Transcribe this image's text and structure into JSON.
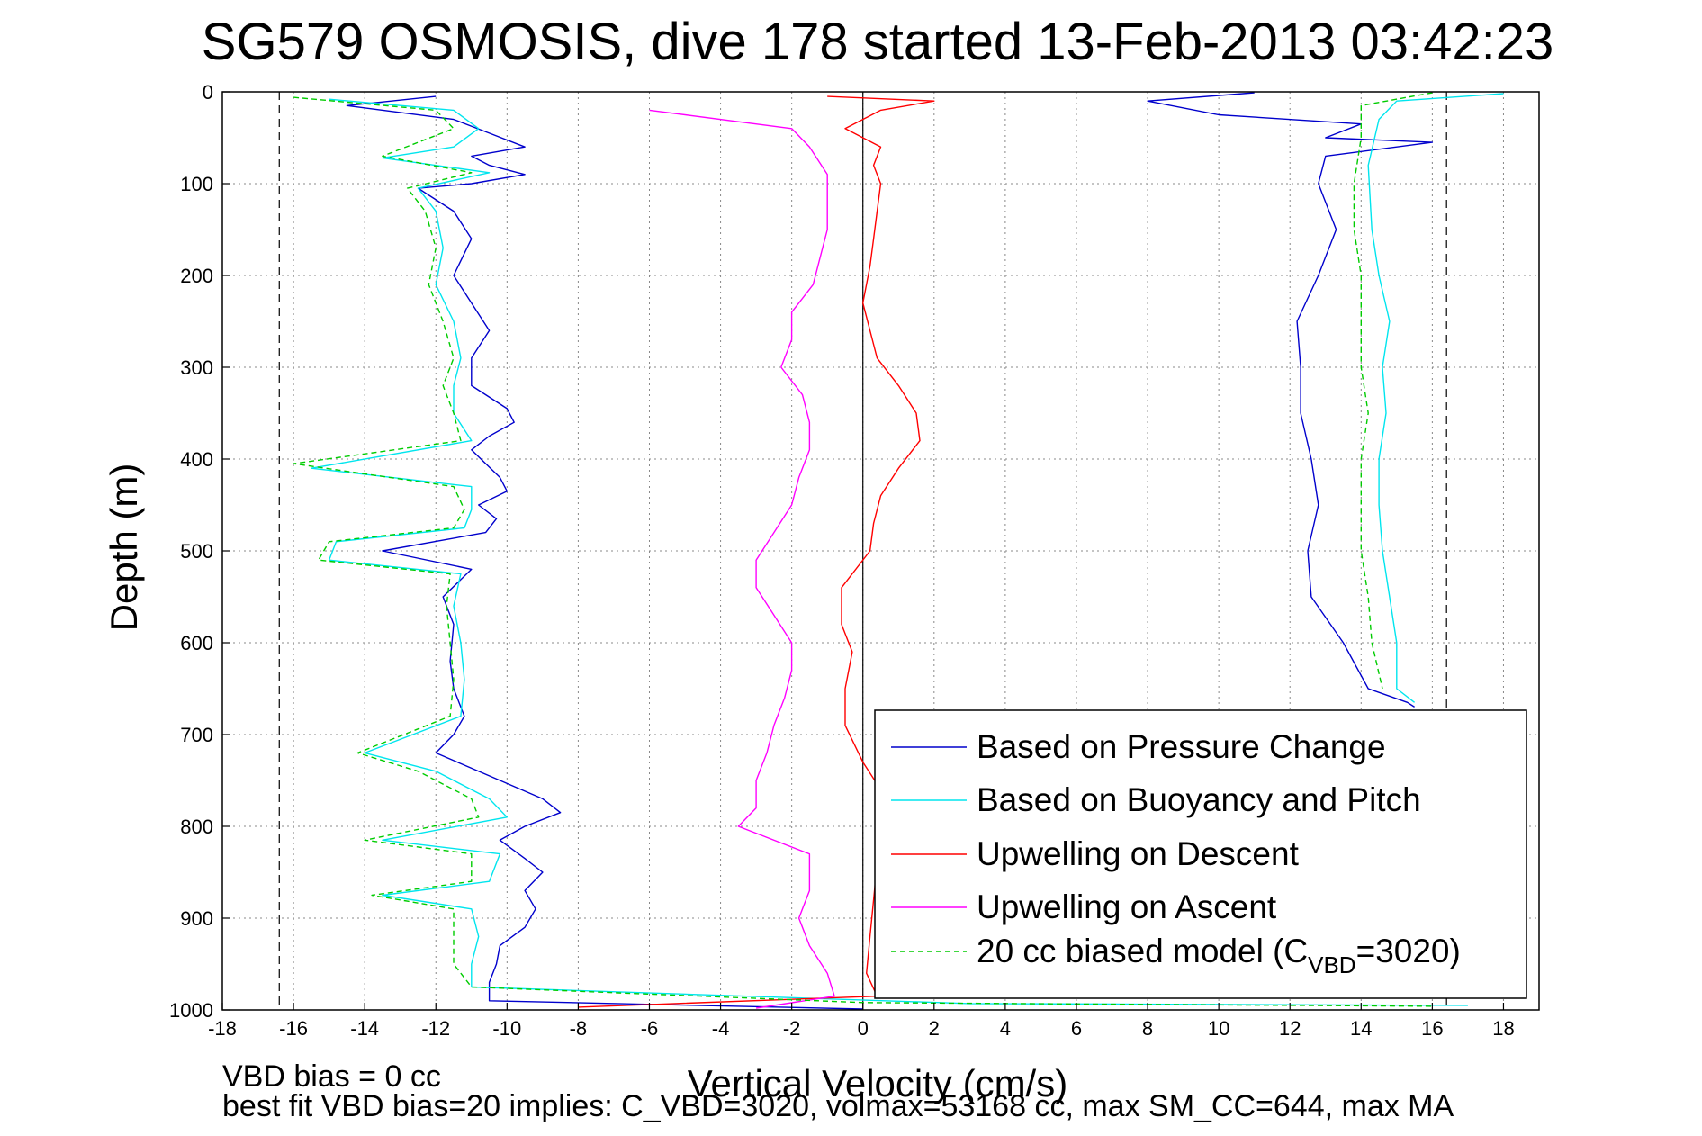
{
  "chart_data": {
    "type": "line",
    "title": "SG579 OSMOSIS, dive 178 started 13-Feb-2013 03:42:23",
    "xlabel": "Vertical Velocity (cm/s)",
    "ylabel": "Depth (m)",
    "xlim": [
      -18,
      19
    ],
    "ylim": [
      0,
      1000
    ],
    "y_reversed": true,
    "grid": true,
    "legend_position": "bottom-right",
    "x_ticks": [
      "-18",
      "-16",
      "-14",
      "-12",
      "-10",
      "-8",
      "-6",
      "-4",
      "-2",
      "0",
      "2",
      "4",
      "6",
      "8",
      "10",
      "12",
      "14",
      "16",
      "18"
    ],
    "y_ticks": [
      "0",
      "100",
      "200",
      "300",
      "400",
      "500",
      "600",
      "700",
      "800",
      "900",
      "1000"
    ],
    "reference_lines": [
      -16.4,
      0,
      16.4
    ],
    "footnotes": [
      "VBD bias = 0 cc",
      "best fit VBD bias=20 implies: C_VBD=3020, volmax=53168 cc, max SM_CC=644, max MA"
    ],
    "legend_sub_text": "VBD",
    "series": [
      {
        "name": "Based on Pressure Change",
        "color": "#0000cc",
        "dash": "",
        "points": [
          [
            -12,
            5
          ],
          [
            -14.5,
            15
          ],
          [
            -11.5,
            30
          ],
          [
            -10.5,
            45
          ],
          [
            -9.5,
            60
          ],
          [
            -11,
            70
          ],
          [
            -10.5,
            80
          ],
          [
            -9.5,
            90
          ],
          [
            -11,
            100
          ],
          [
            -12.5,
            105
          ],
          [
            -11.5,
            130
          ],
          [
            -11,
            160
          ],
          [
            -11.5,
            200
          ],
          [
            -11,
            230
          ],
          [
            -10.5,
            260
          ],
          [
            -11,
            290
          ],
          [
            -11,
            320
          ],
          [
            -10,
            345
          ],
          [
            -9.8,
            360
          ],
          [
            -10.5,
            375
          ],
          [
            -11,
            390
          ],
          [
            -10.2,
            420
          ],
          [
            -10,
            435
          ],
          [
            -10.8,
            450
          ],
          [
            -10.3,
            465
          ],
          [
            -10.6,
            480
          ],
          [
            -13.5,
            500
          ],
          [
            -11,
            520
          ],
          [
            -11.8,
            550
          ],
          [
            -11.5,
            580
          ],
          [
            -11.6,
            620
          ],
          [
            -11.5,
            650
          ],
          [
            -11.2,
            680
          ],
          [
            -11.5,
            700
          ],
          [
            -12,
            720
          ],
          [
            -10.5,
            745
          ],
          [
            -9,
            770
          ],
          [
            -8.5,
            785
          ],
          [
            -9.5,
            800
          ],
          [
            -10.2,
            815
          ],
          [
            -9.5,
            835
          ],
          [
            -9,
            850
          ],
          [
            -9.5,
            870
          ],
          [
            -9.2,
            890
          ],
          [
            -9.5,
            910
          ],
          [
            -10.2,
            930
          ],
          [
            -10.3,
            950
          ],
          [
            -10.5,
            970
          ],
          [
            -10.5,
            990
          ],
          [
            0,
            999
          ],
          [
            11,
            1
          ],
          [
            8,
            10
          ],
          [
            10,
            25
          ],
          [
            14,
            35
          ],
          [
            13,
            50
          ],
          [
            16,
            55
          ],
          [
            13,
            70
          ],
          [
            12.8,
            100
          ],
          [
            13.3,
            150
          ],
          [
            12.8,
            200
          ],
          [
            12.2,
            250
          ],
          [
            12.3,
            300
          ],
          [
            12.3,
            350
          ],
          [
            12.6,
            400
          ],
          [
            12.8,
            450
          ],
          [
            12.5,
            500
          ],
          [
            12.6,
            550
          ],
          [
            13.5,
            600
          ],
          [
            14.2,
            650
          ],
          [
            15.3,
            665
          ],
          [
            15.5,
            670
          ]
        ]
      },
      {
        "name": "Based on Buoyancy and Pitch",
        "color": "#00e5ee",
        "dash": "",
        "points": [
          [
            -15,
            8
          ],
          [
            -11.5,
            20
          ],
          [
            -10.8,
            40
          ],
          [
            -11.5,
            60
          ],
          [
            -13.5,
            72
          ],
          [
            -10.5,
            88
          ],
          [
            -12.5,
            105
          ],
          [
            -12,
            130
          ],
          [
            -11.8,
            170
          ],
          [
            -12,
            210
          ],
          [
            -11.5,
            250
          ],
          [
            -11.3,
            290
          ],
          [
            -11.5,
            320
          ],
          [
            -11.5,
            350
          ],
          [
            -11,
            380
          ],
          [
            -15.5,
            410
          ],
          [
            -11,
            430
          ],
          [
            -11,
            455
          ],
          [
            -11.2,
            475
          ],
          [
            -14.8,
            490
          ],
          [
            -15,
            510
          ],
          [
            -11.3,
            525
          ],
          [
            -11.5,
            560
          ],
          [
            -11.3,
            600
          ],
          [
            -11.2,
            640
          ],
          [
            -11.3,
            680
          ],
          [
            -14,
            720
          ],
          [
            -12,
            740
          ],
          [
            -10.5,
            770
          ],
          [
            -10,
            790
          ],
          [
            -13.5,
            815
          ],
          [
            -10.2,
            830
          ],
          [
            -10.5,
            860
          ],
          [
            -13.5,
            875
          ],
          [
            -11,
            890
          ],
          [
            -10.8,
            920
          ],
          [
            -11,
            950
          ],
          [
            -11,
            975
          ],
          [
            3,
            993
          ],
          [
            17,
            995
          ],
          [
            18,
            2
          ],
          [
            15,
            10
          ],
          [
            14.5,
            30
          ],
          [
            14.2,
            80
          ],
          [
            14.3,
            150
          ],
          [
            14.5,
            200
          ],
          [
            14.8,
            250
          ],
          [
            14.6,
            300
          ],
          [
            14.7,
            350
          ],
          [
            14.5,
            400
          ],
          [
            14.5,
            450
          ],
          [
            14.6,
            500
          ],
          [
            14.8,
            550
          ],
          [
            15,
            600
          ],
          [
            15,
            650
          ],
          [
            15.5,
            665
          ]
        ]
      },
      {
        "name": "Upwelling on Descent",
        "color": "#ff0000",
        "dash": "",
        "points": [
          [
            -1,
            5
          ],
          [
            2,
            10
          ],
          [
            0.5,
            20
          ],
          [
            -0.5,
            40
          ],
          [
            0.5,
            60
          ],
          [
            0.3,
            80
          ],
          [
            0.5,
            100
          ],
          [
            0.4,
            130
          ],
          [
            0.3,
            160
          ],
          [
            0.2,
            190
          ],
          [
            0,
            230
          ],
          [
            0.2,
            260
          ],
          [
            0.4,
            290
          ],
          [
            1,
            320
          ],
          [
            1.5,
            350
          ],
          [
            1.6,
            380
          ],
          [
            1,
            410
          ],
          [
            0.5,
            440
          ],
          [
            0.3,
            470
          ],
          [
            0.2,
            500
          ],
          [
            -0.6,
            540
          ],
          [
            -0.6,
            580
          ],
          [
            -0.3,
            610
          ],
          [
            -0.5,
            650
          ],
          [
            -0.5,
            690
          ],
          [
            0,
            730
          ],
          [
            0.5,
            760
          ],
          [
            0.5,
            800
          ],
          [
            0.4,
            840
          ],
          [
            0.3,
            880
          ],
          [
            0.2,
            920
          ],
          [
            0.1,
            960
          ],
          [
            0.4,
            985
          ],
          [
            -8,
            997
          ]
        ]
      },
      {
        "name": "Upwelling on Ascent",
        "color": "#ff00ff",
        "dash": "",
        "points": [
          [
            -6,
            20
          ],
          [
            -2,
            40
          ],
          [
            -1.5,
            60
          ],
          [
            -1,
            90
          ],
          [
            -1,
            120
          ],
          [
            -1,
            150
          ],
          [
            -1.2,
            180
          ],
          [
            -1.4,
            210
          ],
          [
            -2,
            240
          ],
          [
            -2,
            270
          ],
          [
            -2.3,
            300
          ],
          [
            -1.7,
            330
          ],
          [
            -1.5,
            360
          ],
          [
            -1.5,
            390
          ],
          [
            -1.8,
            420
          ],
          [
            -2,
            450
          ],
          [
            -2.5,
            480
          ],
          [
            -3,
            510
          ],
          [
            -3,
            540
          ],
          [
            -2.5,
            570
          ],
          [
            -2,
            600
          ],
          [
            -2,
            630
          ],
          [
            -2.2,
            660
          ],
          [
            -2.5,
            690
          ],
          [
            -2.7,
            720
          ],
          [
            -3,
            750
          ],
          [
            -3,
            780
          ],
          [
            -3.5,
            800
          ],
          [
            -1.5,
            830
          ],
          [
            -1.5,
            870
          ],
          [
            -1.8,
            900
          ],
          [
            -1.5,
            930
          ],
          [
            -1,
            960
          ],
          [
            -0.8,
            985
          ],
          [
            -3,
            998
          ]
        ]
      },
      {
        "name": "20 cc biased model (C  =3020)",
        "color": "#00cc00",
        "dash": "6 4",
        "points": [
          [
            -16,
            6
          ],
          [
            -12,
            20
          ],
          [
            -11.5,
            40
          ],
          [
            -13.5,
            70
          ],
          [
            -11,
            88
          ],
          [
            -12.8,
            105
          ],
          [
            -12.3,
            130
          ],
          [
            -12,
            170
          ],
          [
            -12.2,
            210
          ],
          [
            -11.8,
            250
          ],
          [
            -11.5,
            290
          ],
          [
            -11.8,
            320
          ],
          [
            -11.5,
            350
          ],
          [
            -11.3,
            380
          ],
          [
            -16,
            405
          ],
          [
            -11.5,
            430
          ],
          [
            -11.2,
            455
          ],
          [
            -11.5,
            475
          ],
          [
            -15,
            490
          ],
          [
            -15.3,
            510
          ],
          [
            -11.6,
            525
          ],
          [
            -11.7,
            560
          ],
          [
            -11.6,
            600
          ],
          [
            -11.5,
            640
          ],
          [
            -11.6,
            680
          ],
          [
            -14.2,
            720
          ],
          [
            -12.5,
            740
          ],
          [
            -11,
            770
          ],
          [
            -10.8,
            790
          ],
          [
            -14,
            815
          ],
          [
            -11,
            830
          ],
          [
            -11,
            860
          ],
          [
            -13.8,
            875
          ],
          [
            -11.5,
            890
          ],
          [
            -11.5,
            920
          ],
          [
            -11.5,
            950
          ],
          [
            -11,
            975
          ],
          [
            0,
            992
          ],
          [
            16,
            996
          ],
          [
            16,
            1
          ],
          [
            14,
            15
          ],
          [
            14,
            50
          ],
          [
            13.8,
            100
          ],
          [
            13.8,
            150
          ],
          [
            14,
            200
          ],
          [
            14,
            250
          ],
          [
            14,
            300
          ],
          [
            14.2,
            350
          ],
          [
            14,
            400
          ],
          [
            14,
            450
          ],
          [
            14,
            500
          ],
          [
            14.2,
            550
          ],
          [
            14.3,
            600
          ],
          [
            14.6,
            650
          ]
        ]
      }
    ]
  }
}
